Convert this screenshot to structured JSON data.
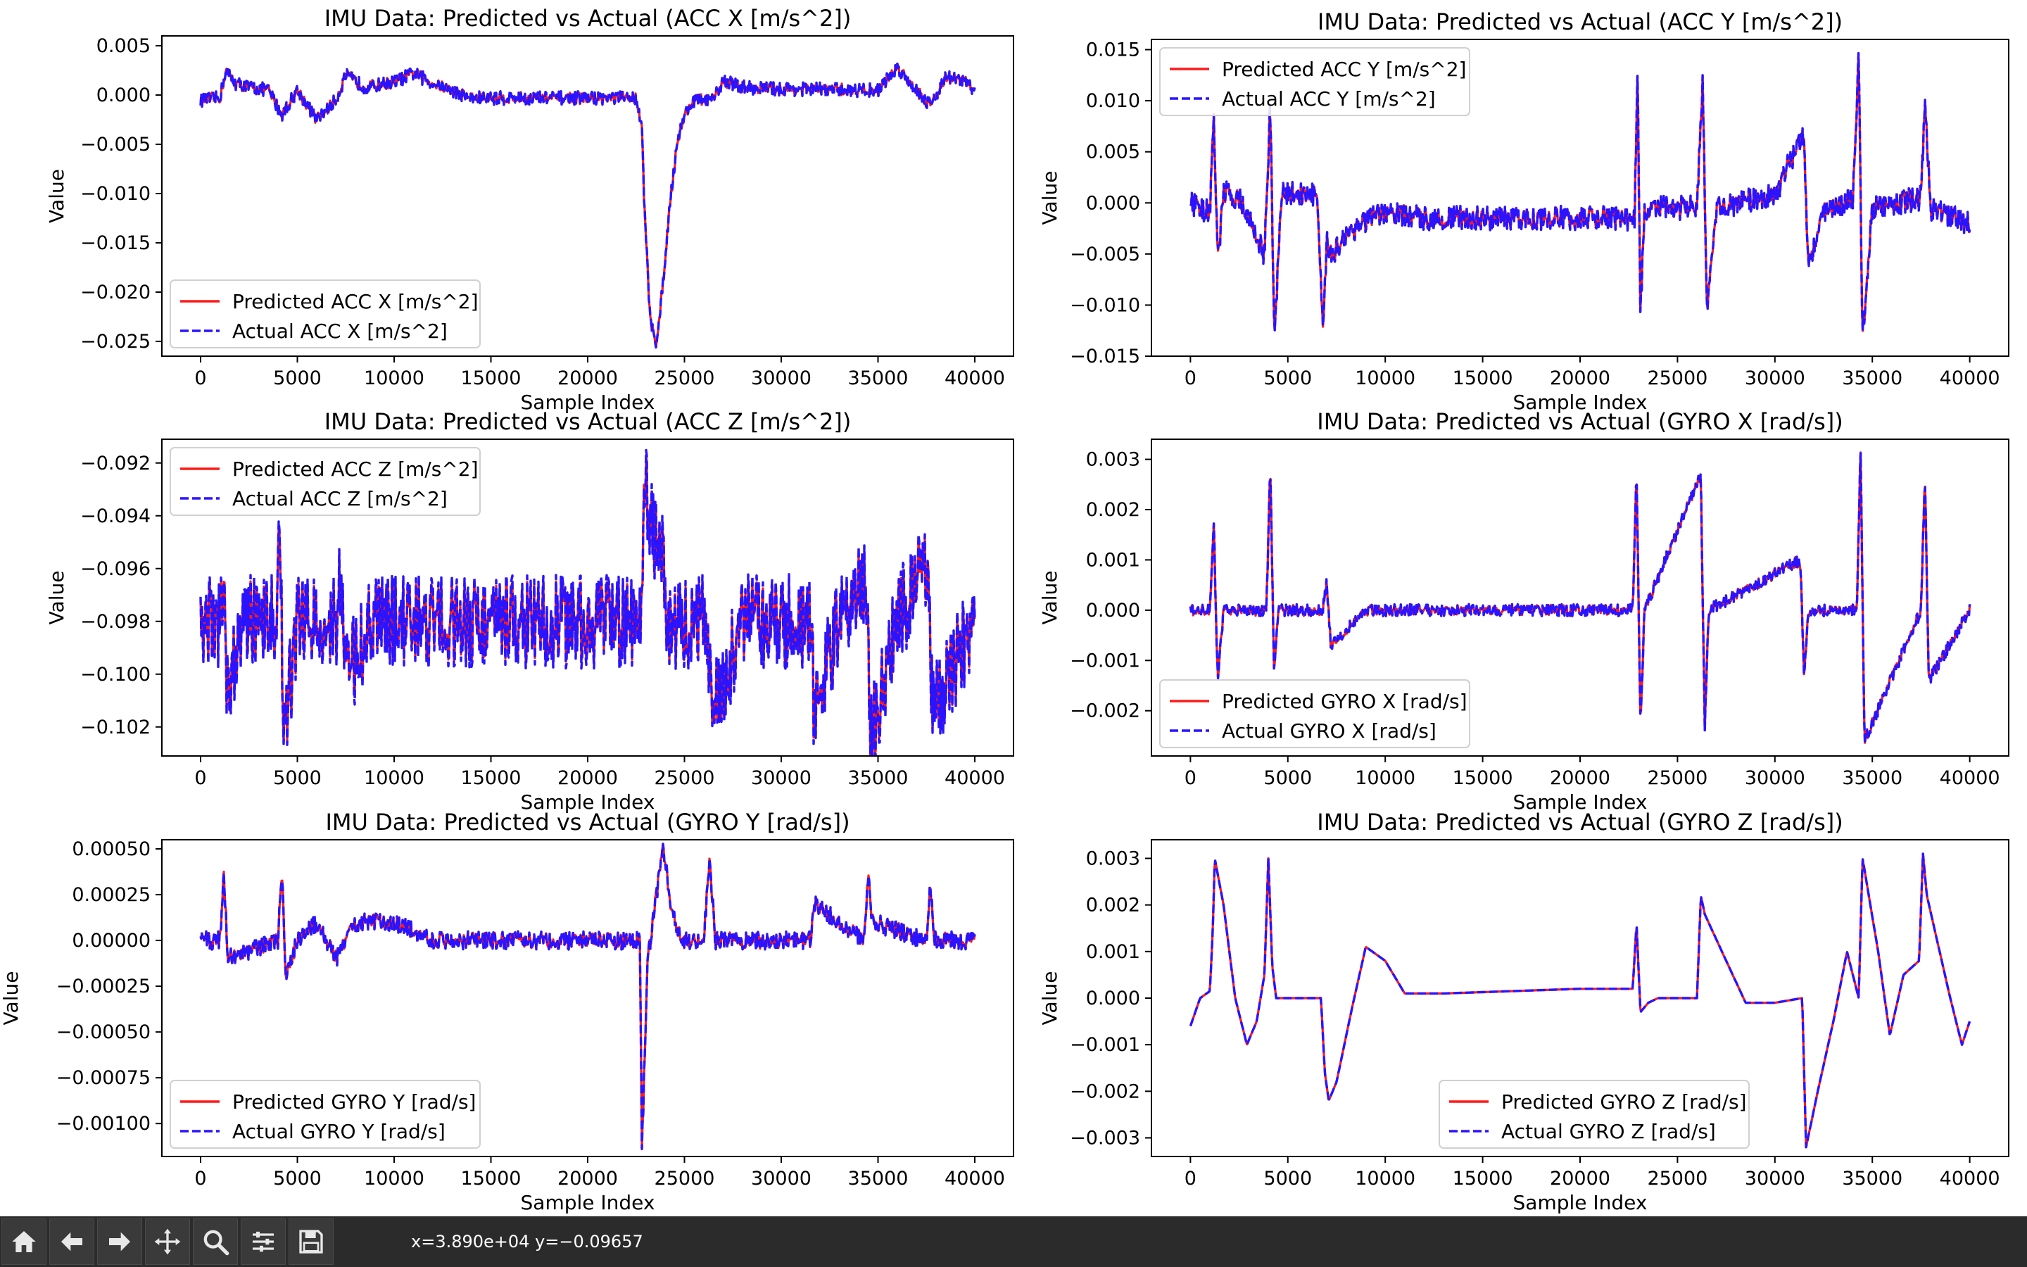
{
  "toolbar": {
    "buttons": [
      "home-icon",
      "back-icon",
      "forward-icon",
      "pan-icon",
      "zoom-icon",
      "configure-icon",
      "save-icon"
    ],
    "coords": "x=3.890e+04 y=−0.09657"
  },
  "colors": {
    "predicted": "#ff1a1a",
    "actual": "#2a14ff"
  },
  "chart_data": [
    {
      "type": "line",
      "title": "IMU Data: Predicted vs Actual (ACC X [m/s^2])",
      "xlabel": "Sample Index",
      "ylabel": "Value",
      "xlim": [
        -2000,
        42000
      ],
      "ylim": [
        -0.0265,
        0.006
      ],
      "xticks": [
        0,
        5000,
        10000,
        15000,
        20000,
        25000,
        30000,
        35000,
        40000
      ],
      "xtick_labels": [
        "0",
        "5000",
        "10000",
        "15000",
        "20000",
        "25000",
        "30000",
        "35000",
        "40000"
      ],
      "yticks": [
        0.005,
        0,
        -0.005,
        -0.01,
        -0.015,
        -0.02,
        -0.025
      ],
      "ytick_labels": [
        "0.005",
        "0.000",
        "−0.005",
        "−0.010",
        "−0.015",
        "−0.020",
        "−0.025"
      ],
      "legend_position": "lower-left",
      "noise": 0.0007,
      "series": [
        {
          "name": "Predicted ACC X [m/s^2]",
          "style": "solid"
        },
        {
          "name": "Actual ACC X [m/s^2]",
          "style": "dashed"
        }
      ],
      "x": [
        0,
        1000,
        1300,
        1800,
        2500,
        3500,
        4200,
        5000,
        5500,
        6000,
        7000,
        7500,
        8500,
        10000,
        11000,
        12000,
        14000,
        17000,
        20000,
        22500,
        22800,
        22900,
        23200,
        23500,
        23800,
        24200,
        24600,
        25000,
        25500,
        26500,
        27000,
        28000,
        30000,
        32000,
        33500,
        35000,
        36000,
        37000,
        37700,
        38500,
        39500,
        40000
      ],
      "values": [
        -0.0005,
        -0.0003,
        0.0025,
        0.0012,
        0.0008,
        0.0005,
        -0.002,
        0.0005,
        -0.001,
        -0.0025,
        -0.0005,
        0.002,
        0.0008,
        0.0013,
        0.0022,
        0.0012,
        -0.0003,
        -0.0003,
        -0.0003,
        -0.0003,
        -0.003,
        -0.01,
        -0.022,
        -0.0255,
        -0.021,
        -0.012,
        -0.005,
        -0.002,
        -0.0005,
        -0.0005,
        0.0015,
        0.0008,
        0.0006,
        0.0006,
        0.0005,
        0.0005,
        0.0028,
        0.0005,
        -0.001,
        0.0018,
        0.0014,
        0.0005
      ]
    },
    {
      "type": "line",
      "title": "IMU Data: Predicted vs Actual (ACC Y [m/s^2])",
      "xlabel": "Sample Index",
      "ylabel": "Value",
      "xlim": [
        -2000,
        42000
      ],
      "ylim": [
        -0.015,
        0.016
      ],
      "xticks": [
        0,
        5000,
        10000,
        15000,
        20000,
        25000,
        30000,
        35000,
        40000
      ],
      "xtick_labels": [
        "0",
        "5000",
        "10000",
        "15000",
        "20000",
        "25000",
        "30000",
        "35000",
        "40000"
      ],
      "yticks": [
        0.015,
        0.01,
        0.005,
        0,
        -0.005,
        -0.01,
        -0.015
      ],
      "ytick_labels": [
        "0.015",
        "0.010",
        "0.005",
        "0.000",
        "−0.005",
        "−0.010",
        "−0.015"
      ],
      "legend_position": "upper-left",
      "noise": 0.0012,
      "series": [
        {
          "name": "Predicted ACC Y [m/s^2]",
          "style": "solid"
        },
        {
          "name": "Actual ACC Y [m/s^2]",
          "style": "dashed"
        }
      ],
      "x": [
        0,
        1000,
        1200,
        1400,
        1700,
        2500,
        3800,
        4100,
        4300,
        4700,
        6500,
        6800,
        7000,
        7300,
        8000,
        9000,
        10000,
        12000,
        15000,
        20000,
        22800,
        22950,
        23100,
        23300,
        24000,
        26000,
        26300,
        26500,
        27000,
        30000,
        31500,
        31700,
        32500,
        34000,
        34300,
        34500,
        35000,
        37500,
        37700,
        38000,
        40000
      ],
      "values": [
        0.0,
        -0.001,
        0.009,
        -0.006,
        0.001,
        0.0005,
        -0.005,
        0.0095,
        -0.013,
        0.001,
        0.0008,
        -0.013,
        -0.004,
        -0.005,
        -0.003,
        -0.0018,
        -0.001,
        -0.0015,
        -0.0015,
        -0.0015,
        -0.0015,
        0.013,
        -0.011,
        -0.001,
        -0.0005,
        -0.0005,
        0.012,
        -0.011,
        -0.0005,
        0.0008,
        0.007,
        -0.006,
        -0.001,
        0.0005,
        0.014,
        -0.013,
        -0.0005,
        0.0005,
        0.01,
        -0.0005,
        -0.002
      ]
    },
    {
      "type": "line",
      "title": "IMU Data: Predicted vs Actual (ACC Z [m/s^2])",
      "xlabel": "Sample Index",
      "ylabel": "Value",
      "xlim": [
        -2000,
        42000
      ],
      "ylim": [
        -0.1031,
        -0.0911
      ],
      "xticks": [
        0,
        5000,
        10000,
        15000,
        20000,
        25000,
        30000,
        35000,
        40000
      ],
      "xtick_labels": [
        "0",
        "5000",
        "10000",
        "15000",
        "20000",
        "25000",
        "30000",
        "35000",
        "40000"
      ],
      "yticks": [
        -0.092,
        -0.094,
        -0.096,
        -0.098,
        -0.1,
        -0.102
      ],
      "ytick_labels": [
        "−0.092",
        "−0.094",
        "−0.096",
        "−0.098",
        "−0.100",
        "−0.102"
      ],
      "legend_position": "upper-left",
      "noise": 0.0018,
      "series": [
        {
          "name": "Predicted ACC Z [m/s^2]",
          "style": "solid"
        },
        {
          "name": "Actual ACC Z [m/s^2]",
          "style": "dashed"
        }
      ],
      "x": [
        0,
        1000,
        1200,
        1400,
        2000,
        3900,
        4100,
        4300,
        5000,
        7000,
        7200,
        7500,
        9000,
        12000,
        15000,
        20000,
        22800,
        22900,
        23100,
        23400,
        23700,
        24200,
        25000,
        26200,
        26400,
        28000,
        31500,
        31700,
        33000,
        34400,
        34600,
        36000,
        37600,
        37800,
        40000
      ],
      "values": [
        -0.098,
        -0.098,
        -0.0955,
        -0.1015,
        -0.098,
        -0.098,
        -0.0945,
        -0.1025,
        -0.098,
        -0.098,
        -0.0965,
        -0.1,
        -0.098,
        -0.098,
        -0.098,
        -0.098,
        -0.098,
        -0.092,
        -0.0935,
        -0.095,
        -0.0945,
        -0.0985,
        -0.098,
        -0.098,
        -0.1015,
        -0.098,
        -0.098,
        -0.1015,
        -0.098,
        -0.0965,
        -0.1025,
        -0.098,
        -0.0955,
        -0.1015,
        -0.098
      ]
    },
    {
      "type": "line",
      "title": "IMU Data: Predicted vs Actual (GYRO X [rad/s])",
      "xlabel": "Sample Index",
      "ylabel": "Value",
      "xlim": [
        -2000,
        42000
      ],
      "ylim": [
        -0.0029,
        0.0034
      ],
      "xticks": [
        0,
        5000,
        10000,
        15000,
        20000,
        25000,
        30000,
        35000,
        40000
      ],
      "xtick_labels": [
        "0",
        "5000",
        "10000",
        "15000",
        "20000",
        "25000",
        "30000",
        "35000",
        "40000"
      ],
      "yticks": [
        0.003,
        0.002,
        0.001,
        0,
        -0.001,
        -0.002
      ],
      "ytick_labels": [
        "0.003",
        "0.002",
        "0.001",
        "0.000",
        "−0.001",
        "−0.002"
      ],
      "legend_position": "lower-left",
      "noise": 0.00012,
      "series": [
        {
          "name": "Predicted GYRO X [rad/s]",
          "style": "solid"
        },
        {
          "name": "Actual GYRO X [rad/s]",
          "style": "dashed"
        }
      ],
      "x": [
        0,
        1000,
        1200,
        1400,
        1700,
        3900,
        4100,
        4300,
        4500,
        6800,
        7000,
        7200,
        9000,
        15000,
        22700,
        22900,
        23100,
        23300,
        26200,
        26400,
        26600,
        31300,
        31500,
        31700,
        34200,
        34400,
        34600,
        37500,
        37700,
        37900,
        40000
      ],
      "values": [
        0.0,
        0.0,
        0.0017,
        -0.0014,
        0.0,
        0.0,
        0.0029,
        -0.0013,
        0.0,
        0.0,
        0.0006,
        -0.0007,
        0.0,
        0.0,
        0.0,
        0.0028,
        -0.0024,
        0.0,
        0.0027,
        -0.0024,
        0.0,
        0.001,
        -0.0014,
        0.0,
        0.0,
        0.0032,
        -0.0026,
        0.0,
        0.0027,
        -0.0014,
        0.0
      ]
    },
    {
      "type": "line",
      "title": "IMU Data: Predicted vs Actual (GYRO Y [rad/s])",
      "xlabel": "Sample Index",
      "ylabel": "Value",
      "xlim": [
        -2000,
        42000
      ],
      "ylim": [
        -0.00118,
        0.00055
      ],
      "xticks": [
        0,
        5000,
        10000,
        15000,
        20000,
        25000,
        30000,
        35000,
        40000
      ],
      "xtick_labels": [
        "0",
        "5000",
        "10000",
        "15000",
        "20000",
        "25000",
        "30000",
        "35000",
        "40000"
      ],
      "yticks": [
        0.0005,
        0.00025,
        0,
        -0.00025,
        -0.0005,
        -0.00075,
        -0.001
      ],
      "ytick_labels": [
        "0.00050",
        "0.00025",
        "0.00000",
        "−0.00025",
        "−0.00050",
        "−0.00075",
        "−0.00100"
      ],
      "legend_position": "lower-left",
      "noise": 5e-05,
      "series": [
        {
          "name": "Predicted GYRO Y [rad/s]",
          "style": "solid"
        },
        {
          "name": "Actual GYRO Y [rad/s]",
          "style": "dashed"
        }
      ],
      "x": [
        0,
        1000,
        1200,
        1400,
        4000,
        4200,
        4400,
        5000,
        6000,
        7000,
        8000,
        9000,
        10000,
        12000,
        20000,
        22700,
        22800,
        22900,
        23100,
        23500,
        23900,
        24300,
        24800,
        26000,
        26300,
        26600,
        30000,
        31500,
        31700,
        34300,
        34500,
        34700,
        37500,
        37700,
        37900,
        40000
      ],
      "values": [
        0.0,
        0.0,
        0.0004,
        -0.0001,
        0.0,
        0.0004,
        -0.0002,
        0.0,
        0.0001,
        -0.0001,
        0.0001,
        0.0001,
        0.0001,
        0.0,
        0.0,
        0.0,
        -0.00115,
        -0.0008,
        -0.0001,
        0.0002,
        0.00052,
        0.0002,
        0.0,
        0.0,
        0.00045,
        0.0,
        0.0,
        0.0,
        0.0002,
        0.0,
        0.0004,
        0.0001,
        0.0,
        0.0003,
        0.0,
        0.0
      ]
    },
    {
      "type": "line",
      "title": "IMU Data: Predicted vs Actual (GYRO Z [rad/s])",
      "xlabel": "Sample Index",
      "ylabel": "Value",
      "xlim": [
        -2000,
        42000
      ],
      "ylim": [
        -0.0034,
        0.0034
      ],
      "xticks": [
        0,
        5000,
        10000,
        15000,
        20000,
        25000,
        30000,
        35000,
        40000
      ],
      "xtick_labels": [
        "0",
        "5000",
        "10000",
        "15000",
        "20000",
        "25000",
        "30000",
        "35000",
        "40000"
      ],
      "yticks": [
        0.003,
        0.002,
        0.001,
        0,
        -0.001,
        -0.002,
        -0.003
      ],
      "ytick_labels": [
        "0.003",
        "0.002",
        "0.001",
        "0.000",
        "−0.001",
        "−0.002",
        "−0.003"
      ],
      "legend_position": "lower-center",
      "noise": 0,
      "series": [
        {
          "name": "Predicted GYRO Z [rad/s]",
          "style": "solid"
        },
        {
          "name": "Actual GYRO Z [rad/s]",
          "style": "dashed"
        }
      ],
      "x": [
        0,
        500,
        1000,
        1150,
        1250,
        1700,
        2300,
        2900,
        3400,
        3800,
        4000,
        4200,
        4400,
        5000,
        6700,
        6900,
        7100,
        7500,
        8300,
        9000,
        10000,
        11000,
        13000,
        20000,
        22700,
        22900,
        23100,
        23500,
        24000,
        26000,
        26200,
        26400,
        27500,
        28500,
        30000,
        31400,
        31600,
        32200,
        33000,
        33700,
        34300,
        34500,
        35300,
        35900,
        36600,
        37400,
        37600,
        37800,
        39000,
        39600,
        40000
      ],
      "values": [
        -0.0006,
        0.0,
        0.00015,
        0.0015,
        0.003,
        0.002,
        0.0,
        -0.001,
        -0.0005,
        0.0005,
        0.003,
        0.0007,
        0.0,
        0.0,
        0.0,
        -0.0016,
        -0.0022,
        -0.0018,
        -0.0002,
        0.0011,
        0.0008,
        0.0001,
        0.0001,
        0.0002,
        0.0002,
        0.0016,
        -0.0003,
        -0.0001,
        0.0,
        0.0,
        0.0022,
        0.0018,
        0.0008,
        -0.0001,
        -0.0001,
        0.0,
        -0.0032,
        -0.002,
        -0.0005,
        0.001,
        0.0,
        0.003,
        0.001,
        -0.0008,
        0.0005,
        0.0008,
        0.0031,
        0.0022,
        0.0,
        -0.001,
        -0.0005
      ]
    }
  ]
}
